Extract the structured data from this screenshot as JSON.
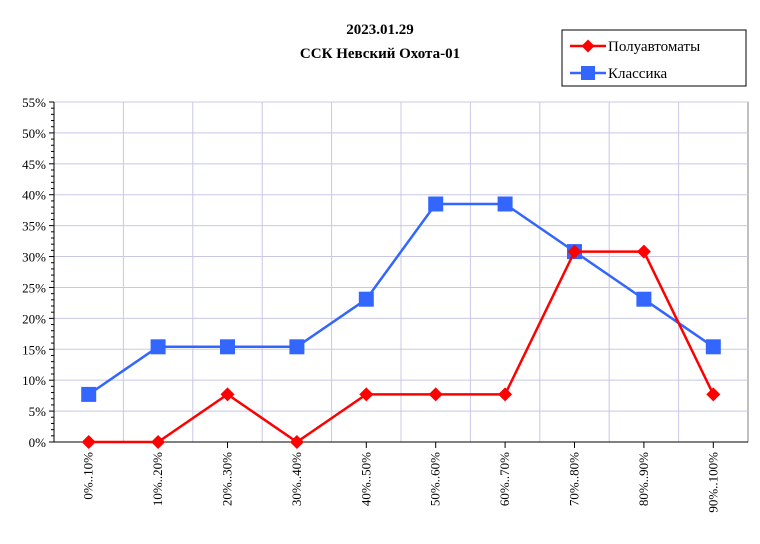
{
  "chart_data": {
    "type": "line",
    "title": "2023.01.29",
    "subtitle": "ССК Невский Охота-01",
    "xlabel": "",
    "ylabel": "",
    "categories": [
      "0%..10%",
      "10%..20%",
      "20%..30%",
      "30%..40%",
      "40%..50%",
      "50%..60%",
      "60%..70%",
      "70%..80%",
      "80%..90%",
      "90%..100%"
    ],
    "y_ticks": [
      "0%",
      "5%",
      "10%",
      "15%",
      "20%",
      "25%",
      "30%",
      "35%",
      "40%",
      "45%",
      "50%",
      "55%"
    ],
    "ylim": [
      0,
      55
    ],
    "grid": true,
    "legend_position": "top-right",
    "series": [
      {
        "name": "Полуавтоматы",
        "color": "#ff0000",
        "marker": "diamond",
        "values": [
          0,
          0,
          7.7,
          0,
          7.7,
          7.7,
          7.7,
          30.8,
          30.8,
          7.7
        ]
      },
      {
        "name": "Классика",
        "color": "#3366ff",
        "marker": "square",
        "values": [
          7.7,
          15.4,
          15.4,
          15.4,
          23.1,
          38.5,
          38.5,
          30.8,
          23.1,
          15.4
        ]
      }
    ]
  }
}
